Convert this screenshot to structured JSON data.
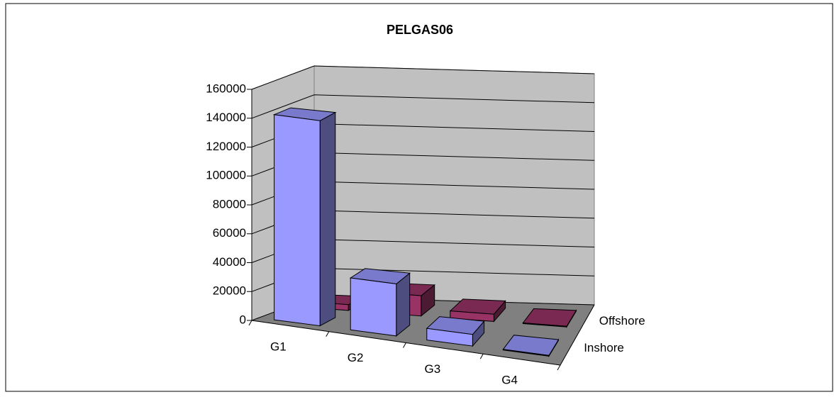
{
  "chart_data": {
    "type": "bar3d",
    "title": "PELGAS06",
    "categories": [
      "G1",
      "G2",
      "G3",
      "G4"
    ],
    "series": [
      {
        "name": "Inshore",
        "color": "#9999ff",
        "values": [
          142000,
          36000,
          8000,
          500
        ]
      },
      {
        "name": "Offshore",
        "color": "#993366",
        "values": [
          4000,
          14000,
          5000,
          500
        ]
      }
    ],
    "ylim": [
      0,
      160000
    ],
    "yticks": [
      0,
      20000,
      40000,
      60000,
      80000,
      100000,
      120000,
      140000,
      160000
    ],
    "grid": true
  }
}
